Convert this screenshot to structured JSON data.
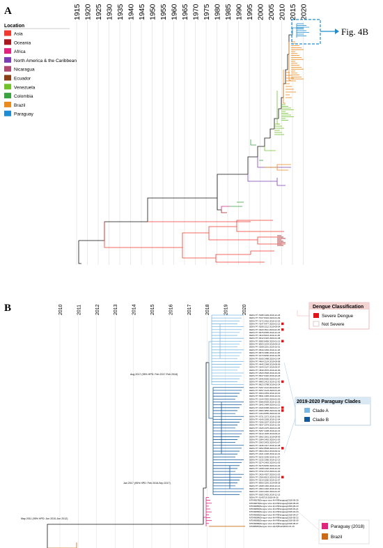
{
  "panel_a": {
    "letter": "A",
    "years": [
      "1915",
      "1920",
      "1925",
      "1930",
      "1935",
      "1940",
      "1945",
      "1950",
      "1955",
      "1960",
      "1965",
      "1970",
      "1975",
      "1980",
      "1985",
      "1990",
      "1995",
      "2000",
      "2005",
      "2010",
      "2015",
      "2020"
    ],
    "legend_title": "Location",
    "legend": [
      {
        "label": "Asia",
        "color": "#f0392f"
      },
      {
        "label": "Oceania",
        "color": "#a8181e"
      },
      {
        "label": "Africa",
        "color": "#e0237e"
      },
      {
        "label": "North America & the Caribbean",
        "color": "#7b3db4"
      },
      {
        "label": "Nicaragua",
        "color": "#b0496f"
      },
      {
        "label": "Ecuador",
        "color": "#8a3e14"
      },
      {
        "label": "Venezuela",
        "color": "#72c22c"
      },
      {
        "label": "Colombia",
        "color": "#3aa33f"
      },
      {
        "label": "Brazil",
        "color": "#e88a1d"
      },
      {
        "label": "Paraguay",
        "color": "#1f8bd0"
      }
    ],
    "fig_ref": "Fig. 4B"
  },
  "panel_b": {
    "letter": "B",
    "years": [
      "2010",
      "2011",
      "2012",
      "2013",
      "2014",
      "2015",
      "2016",
      "2017",
      "2018",
      "2019",
      "2020"
    ],
    "annotations": {
      "aug2017": "Aug 2017 (95% HPD: Feb 2017-Feb 2018)",
      "jan2017": "Jan 2017 (95% HPD: Feb 2016-Sep 2017)",
      "may2011": "May 2011 (95% HPD: Jun 2010-Jun 2012)"
    },
    "dengue_legend": {
      "title": "Dengue Classification",
      "items": [
        {
          "label": "Severe Dengue",
          "color": "#e0151a"
        },
        {
          "label": "Not Severe",
          "color": "#ffffff"
        }
      ]
    },
    "clade_legend": {
      "title": "2019-2020 Paraguay Clades",
      "items": [
        {
          "label": "Clade A",
          "color": "#7ab7e3"
        },
        {
          "label": "Clade B",
          "color": "#125a9c"
        }
      ]
    },
    "bottom_legend": [
      {
        "label": "Paraguay (2018)",
        "color": "#e0237e"
      },
      {
        "label": "Brazil",
        "color": "#cc6a14"
      }
    ],
    "colors": {
      "clade_a": "#7ab7e3",
      "clade_b": "#125a9c",
      "pink": "#e0237e",
      "brazil": "#cc6a14"
    },
    "tips": [
      "DENV PY 5188 2409 2019-12-26",
      "DENV PY 5727 8434 2020-01-09",
      "DENV PY 3172 2416 2019-12-26",
      "DENV PY 4147 6477 2020-01-21",
      "DENV PY 9208 2212 2019-09-04",
      "DENV PY 0320 3511 2020-02-05",
      "DENV PY 8375 8355 2019-12-23",
      "DENV PY 4613 8243 2019-11-05",
      "DENV PY 6612 6415 2020-01-08",
      "DENV PY 8382 8456 2020-01-19",
      "DENV PY 8003 2234 2019-09-14",
      "DENV PY 0208 2251 2019-10-01",
      "DENV PY 0540 2352 2019-11-18",
      "DENV PY 8670 2080 2019-11-05",
      "DENV PY 6173 8266 2019-12-05",
      "DENV PY 8166 2488 2020-01-04",
      "DENV PY 4464 2124 2019-09-08",
      "DENV PY 4445 2348 2019-08-06",
      "DENV PY 3244 2157 2019-09-07",
      "DENV PY 4549 2576 2019-10-30",
      "DENV PY 2620 2548 2019-10-29",
      "DENV PY 8347 6440 2019-10-29",
      "DENV PY 2646 8355 2020-01-07",
      "DENV PY 8483 2413 2019-12-30",
      "DENV PY 8623 3788 2019-02-24",
      "DENV PY 5157 2113 2019-09-07",
      "DENV PY 8157 2123 2020-01-20",
      "DENV PY 6464 2353 2019-12-16",
      "DENV PY 5841 2465 2019-12-19",
      "DENV PY 2144 3352 2020-01-20",
      "DENV PY 5086 8305 2019-12-26",
      "DENV PY 2642 2484 2020-01-21",
      "DENV PY 1526 8458 2020-01-17",
      "DENV PY 6683 3856 2020-02-03",
      "DENV PY 1264 8355 2020-02-01",
      "DENV PY 6731 2272 2019-12-06",
      "DENV PY 4140 2265 2019-12-04",
      "DENV PY 3196 2267 2019-12-04",
      "DENV PY 4537 2379 2019-11-03",
      "DENV PY 3125 2475 2020-01-05",
      "DENV PY 5257 2438 2019-12-31",
      "DENV PY 6413 1035 2019-09-21",
      "DENV PY 0562 2061 2019-08-09",
      "DENV PY 2084 2462 2020-01-03",
      "DENV PY 2063 3433 2020-01-07",
      "DENV PY 3246 2417 2019-12-08",
      "DENV PY 6352 8508 2020-01-07",
      "DENV PY 0604 2012 2019-09-12",
      "DENV PY 2421 2436 2019-12-31",
      "DENV PY 8132 2295 2019-11-07",
      "DENV PY 2132 2385 2019-12-13",
      "DENV PY 5274 2463 2020-01-03",
      "DENV PY 5475 8256 2020-01-03",
      "DENV PY 2208 2426 2019-12-19",
      "DENV PY 0732 2744 2020-01-30",
      "DENV PY 2426 4357 2020-01-03",
      "DENV PY 2306 8513 2020-02-05",
      "DENV PY 0214 2260 2019-12-07",
      "DENV PY 8000 2281 2019-08-28",
      "DENV PY 2408 1462 2019-12-14",
      "DENV PY 3304 2440 2019-12-31",
      "DENV PY 1403 2440 2020-01-07",
      "DENV PY 8183 2425 2019-12-22",
      "DENV PY 6145719 2018-04-26",
      "MT049678|Dengue virus 4|4-P|Paraguay|2018-05-28",
      "MT049679|Dengue virus 4|4-P|Paraguay|2018-05-09",
      "MT049680|Dengue virus 4|4-P|Paraguay|2018-05-23",
      "MT049681|Dengue virus 4|4-P|Paraguay|2018-04-21",
      "MT049682|Dengue virus 4|4-P|Paraguay|2018-04-20",
      "MT049683|Dengue virus 4|4-P|Paraguay|2018-04-27",
      "MT049684|Dengue virus 4|4-P|Paraguay|2018-05-22",
      "MT049685|Dengue virus 4|4-P|Paraguay|2018-05-09",
      "MT049686|Dengue virus 4|4-P|Paraguay|2018-05-07",
      "KP188565|Dengue virus 4|4-P|Brazil|2013-01-15"
    ],
    "severe_tip_indices": [
      3,
      5,
      9,
      23,
      32,
      33,
      46,
      56
    ]
  }
}
